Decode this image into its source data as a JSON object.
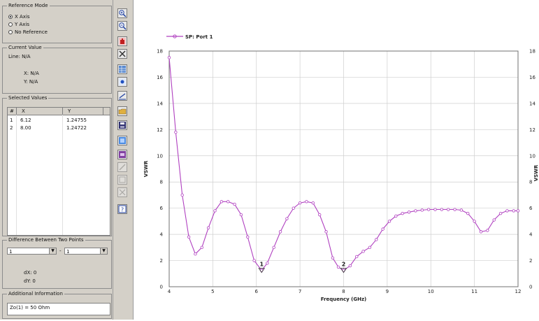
{
  "reference_mode": {
    "title": "Reference Mode",
    "options": [
      "X Axis",
      "Y Axis",
      "No Reference"
    ],
    "selected_index": 0
  },
  "current_value": {
    "title": "Current Value",
    "line": "Line: N/A",
    "x": "X: N/A",
    "y": "Y: N/A"
  },
  "selected_values": {
    "title": "Selected Values",
    "columns": [
      "#",
      "X",
      "Y"
    ],
    "rows": [
      {
        "n": "1",
        "x": "6.12",
        "y": "1.24755"
      },
      {
        "n": "2",
        "x": "8.00",
        "y": "1.24722"
      }
    ]
  },
  "difference": {
    "title": "Difference Between Two Points",
    "from": "1",
    "to": "1",
    "dx": "dX: 0",
    "dy": "dY: 0"
  },
  "additional_info": {
    "title": "Additional Information",
    "text": "Zo(1) = 50 Ohm"
  },
  "toolbar_icons": [
    "zoom-in-icon",
    "zoom-out-icon",
    "pan-icon",
    "tools-icon",
    "grid-icon",
    "marker-icon",
    "line-icon",
    "open-icon",
    "save-icon",
    "copy-icon",
    "print-icon",
    "edit-icon",
    "cut-icon",
    "delete-icon",
    "help-icon"
  ],
  "chart_data": {
    "type": "line",
    "legend": "SP: Port 1",
    "xlabel": "Frequency (GHz)",
    "ylabel": "VSWR",
    "xlim": [
      4,
      12
    ],
    "ylim": [
      0,
      18
    ],
    "x_ticks": [
      "4",
      "5",
      "6",
      "7",
      "8",
      "9",
      "10",
      "11",
      "12"
    ],
    "y_ticks": [
      "0",
      "2",
      "4",
      "6",
      "8",
      "10",
      "12",
      "14",
      "16",
      "18"
    ],
    "grid": true,
    "series": [
      {
        "name": "SP: Port 1",
        "color": "#b040c0",
        "x": [
          4.0,
          4.15,
          4.3,
          4.45,
          4.6,
          4.75,
          4.9,
          5.05,
          5.2,
          5.35,
          5.5,
          5.65,
          5.8,
          5.95,
          6.12,
          6.25,
          6.4,
          6.55,
          6.7,
          6.85,
          7.0,
          7.15,
          7.3,
          7.45,
          7.6,
          7.75,
          7.88,
          8.0,
          8.15,
          8.3,
          8.45,
          8.6,
          8.75,
          8.9,
          9.05,
          9.2,
          9.35,
          9.5,
          9.65,
          9.8,
          9.95,
          10.1,
          10.25,
          10.4,
          10.55,
          10.7,
          10.85,
          11.0,
          11.15,
          11.3,
          11.45,
          11.6,
          11.75,
          11.9,
          12.0
        ],
        "y": [
          17.5,
          11.8,
          7.0,
          3.8,
          2.5,
          3.0,
          4.5,
          5.8,
          6.5,
          6.5,
          6.3,
          5.5,
          3.8,
          2.0,
          1.25,
          1.8,
          3.0,
          4.2,
          5.2,
          6.0,
          6.4,
          6.5,
          6.4,
          5.5,
          4.2,
          2.2,
          1.5,
          1.25,
          1.6,
          2.3,
          2.7,
          3.0,
          3.6,
          4.4,
          5.0,
          5.4,
          5.6,
          5.7,
          5.8,
          5.85,
          5.9,
          5.9,
          5.9,
          5.9,
          5.9,
          5.85,
          5.6,
          5.0,
          4.2,
          4.3,
          5.1,
          5.6,
          5.8,
          5.8,
          5.8
        ]
      }
    ],
    "markers": [
      {
        "label": "1",
        "x": 6.12,
        "y": 1.25
      },
      {
        "label": "2",
        "x": 8.0,
        "y": 1.25
      }
    ]
  }
}
